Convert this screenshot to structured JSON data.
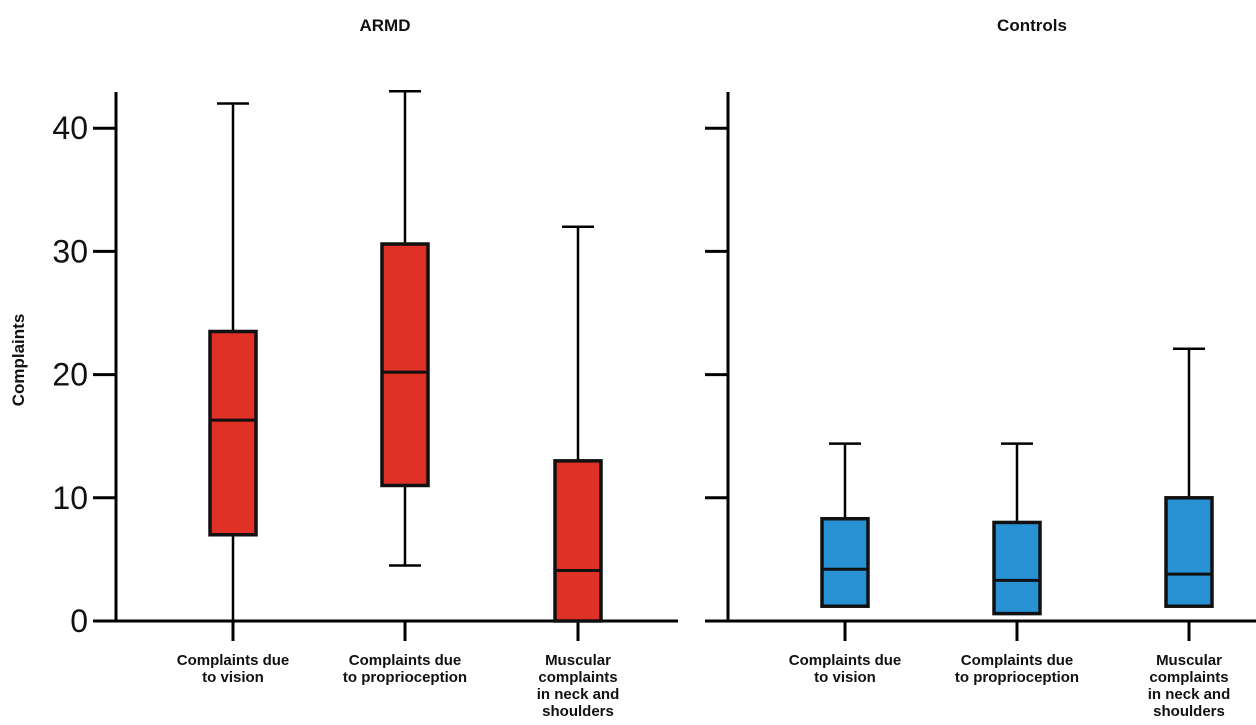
{
  "chart_data": [
    {
      "type": "box",
      "title": "ARMD",
      "ylabel": "Complaints",
      "ylim": [
        0,
        43
      ],
      "yticks": [
        0,
        10,
        20,
        30,
        40
      ],
      "color": "#e03127",
      "categories": [
        [
          "Complaints due",
          "to vision"
        ],
        [
          "Complaints due",
          "to proprioception"
        ],
        [
          "Muscular",
          "complaints",
          "in neck and",
          "shoulders"
        ]
      ],
      "boxes": [
        {
          "min": 0,
          "q1": 7,
          "median": 16.3,
          "q3": 23.5,
          "max": 42
        },
        {
          "min": 4.5,
          "q1": 11,
          "median": 20.2,
          "q3": 30.6,
          "max": 43
        },
        {
          "min": 0,
          "q1": 0,
          "median": 4.1,
          "q3": 13,
          "max": 32
        }
      ]
    },
    {
      "type": "box",
      "title": "Controls",
      "ylabel": "",
      "ylim": [
        0,
        43
      ],
      "yticks": [
        0,
        10,
        20,
        30,
        40
      ],
      "color": "#2891d4",
      "categories": [
        [
          "Complaints due",
          "to vision"
        ],
        [
          "Complaints due",
          "to proprioception"
        ],
        [
          "Muscular",
          "complaints",
          "in neck and",
          "shoulders"
        ]
      ],
      "boxes": [
        {
          "min": 1.2,
          "q1": 1.2,
          "median": 4.2,
          "q3": 8.3,
          "max": 14.4
        },
        {
          "min": 0.6,
          "q1": 0.6,
          "median": 3.3,
          "q3": 8,
          "max": 14.4
        },
        {
          "min": 1.2,
          "q1": 1.2,
          "median": 3.8,
          "q3": 10,
          "max": 22.1
        }
      ]
    }
  ]
}
